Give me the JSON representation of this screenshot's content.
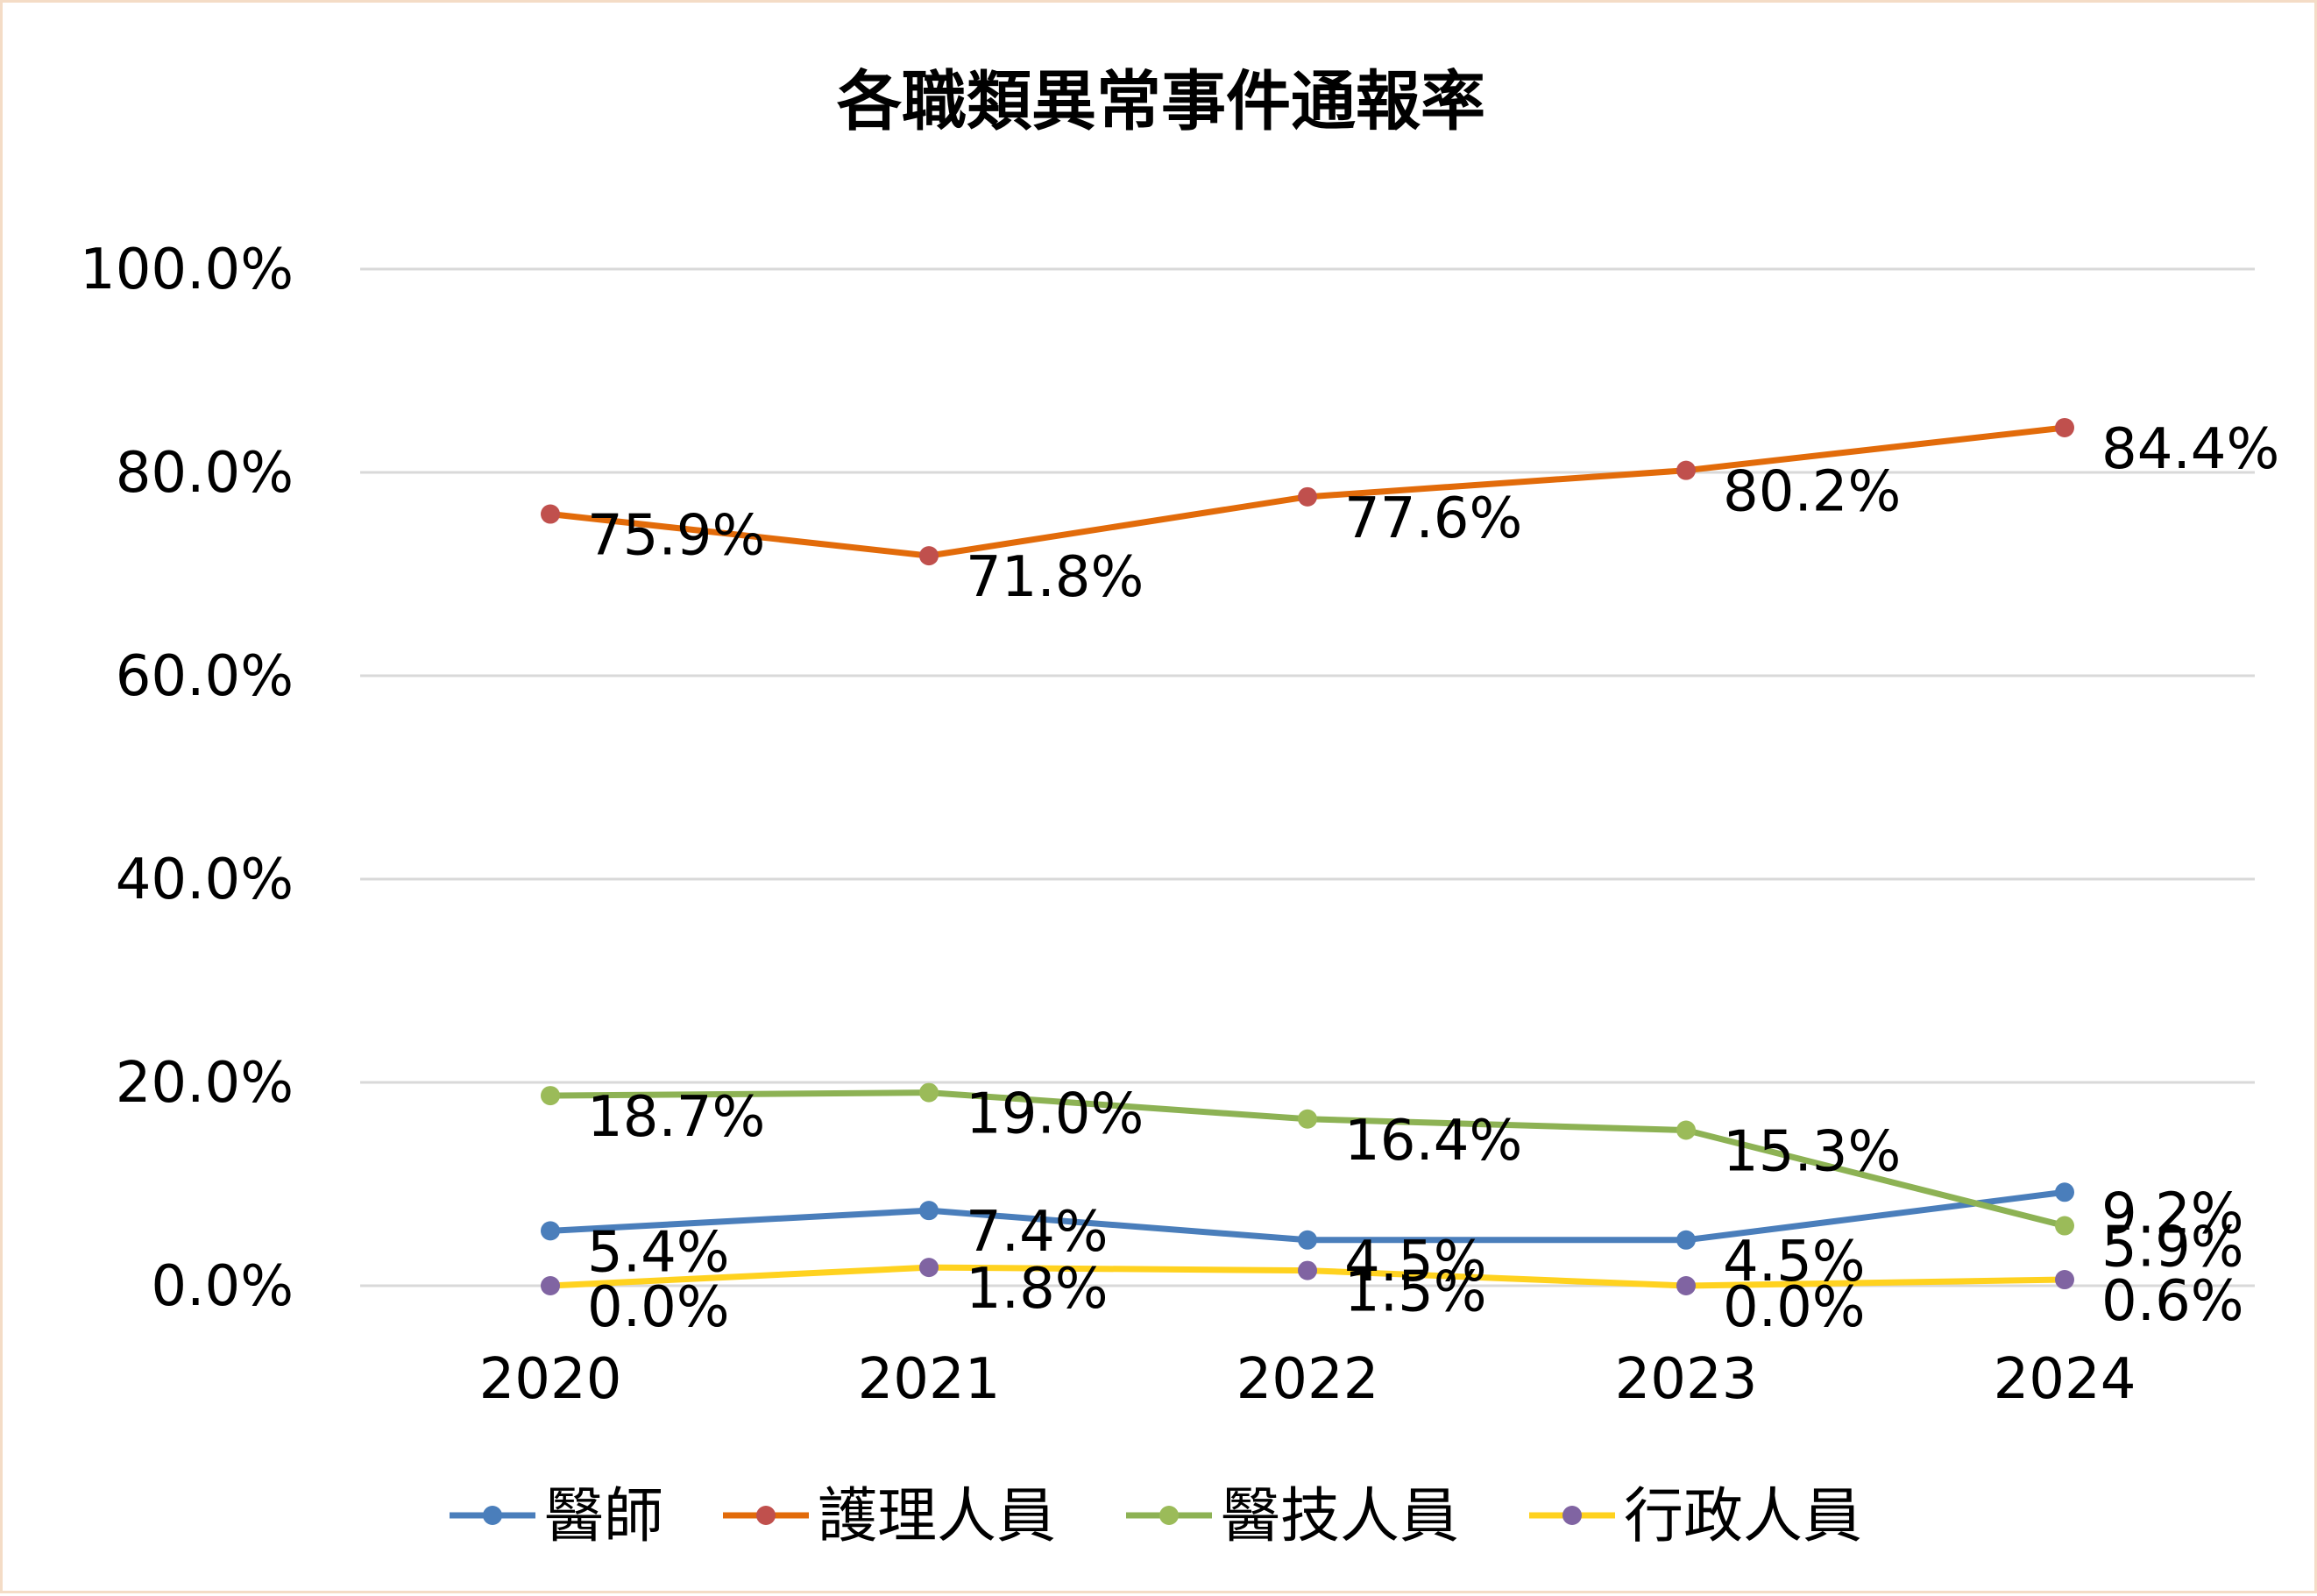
{
  "chart_data": {
    "type": "line",
    "title": "各職類異常事件通報率",
    "xlabel": "",
    "ylabel": "",
    "categories": [
      "2020",
      "2021",
      "2022",
      "2023",
      "2024"
    ],
    "y_ticks": [
      "0.0%",
      "20.0%",
      "40.0%",
      "60.0%",
      "80.0%",
      "100.0%"
    ],
    "ylim": [
      0,
      100
    ],
    "grid": true,
    "legend_position": "bottom",
    "series": [
      {
        "name": "醫師",
        "line_color": "#4a7ebb",
        "marker_color": "#4a7ebb",
        "values": [
          5.4,
          7.4,
          4.5,
          4.5,
          9.2
        ],
        "labels": [
          "5.4%",
          "7.4%",
          "4.5%",
          "4.5%",
          "9.2%"
        ]
      },
      {
        "name": "護理人員",
        "line_color": "#e26b0a",
        "marker_color": "#c0504d",
        "values": [
          75.9,
          71.8,
          77.6,
          80.2,
          84.4
        ],
        "labels": [
          "75.9%",
          "71.8%",
          "77.6%",
          "80.2%",
          "84.4%"
        ]
      },
      {
        "name": "醫技人員",
        "line_color": "#8db254",
        "marker_color": "#9bbb59",
        "values": [
          18.7,
          19.0,
          16.4,
          15.3,
          5.9
        ],
        "labels": [
          "18.7%",
          "19.0%",
          "16.4%",
          "15.3%",
          "5.9%"
        ]
      },
      {
        "name": "行政人員",
        "line_color": "#ffd21f",
        "marker_color": "#8064a2",
        "values": [
          0.0,
          1.8,
          1.5,
          0.0,
          0.6
        ],
        "labels": [
          "0.0%",
          "1.8%",
          "1.5%",
          "0.0%",
          "0.6%"
        ]
      }
    ]
  }
}
